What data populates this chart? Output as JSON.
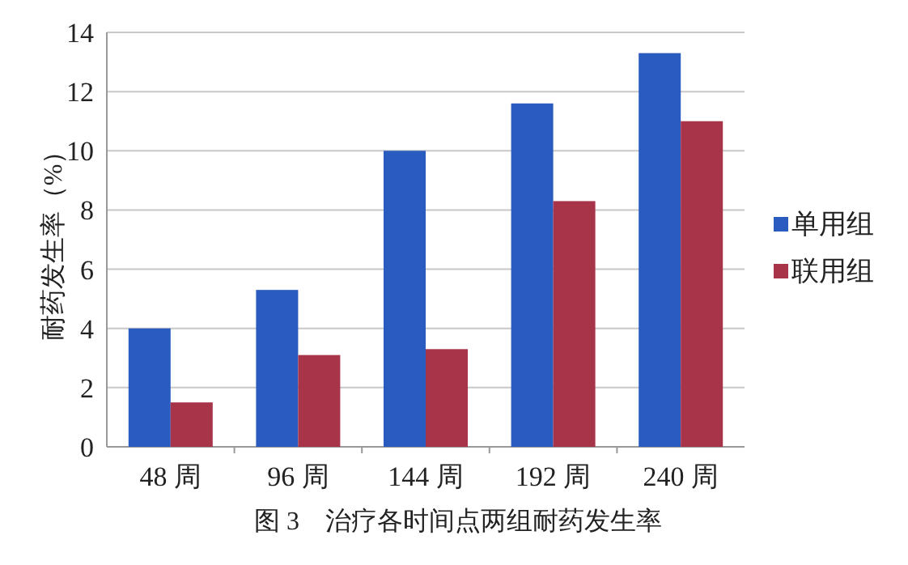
{
  "chart_data": {
    "type": "bar",
    "title": "图 3　治疗各时间点两组耐药发生率",
    "ylabel": "耐药发生率（%）",
    "categories": [
      "48 周",
      "96 周",
      "144 周",
      "192 周",
      "240 周"
    ],
    "series": [
      {
        "name": "单用组",
        "color": "#2a5bbf",
        "values": [
          4.0,
          5.3,
          10.0,
          11.6,
          13.3
        ]
      },
      {
        "name": "联用组",
        "color": "#a8344a",
        "values": [
          1.5,
          3.1,
          3.3,
          8.3,
          11.0
        ]
      }
    ],
    "ylim": [
      0,
      14
    ],
    "yticks": [
      0,
      2,
      4,
      6,
      8,
      10,
      12,
      14
    ],
    "grid": "y",
    "legend": "right"
  }
}
